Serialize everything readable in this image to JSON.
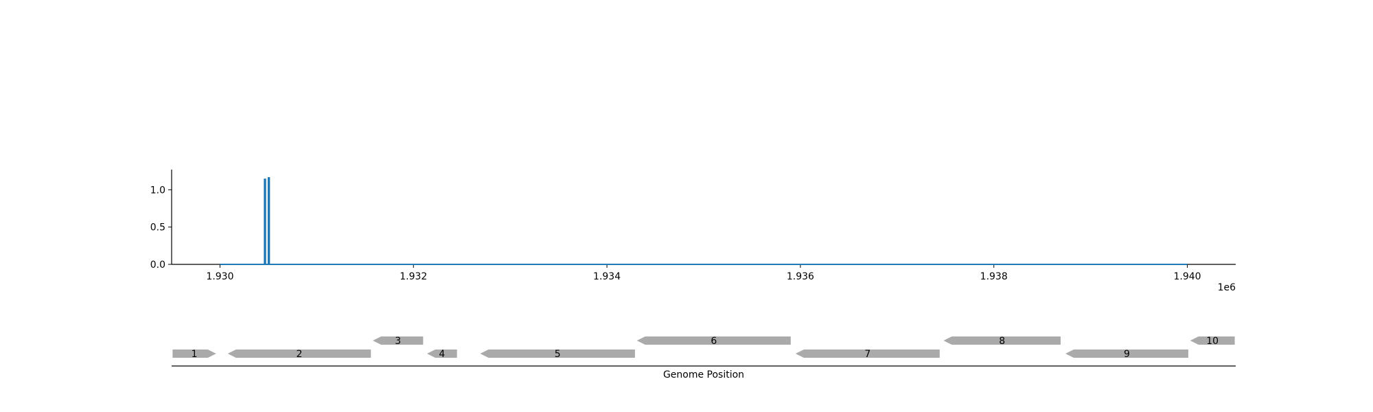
{
  "chart_data": [
    {
      "type": "line",
      "title": "",
      "xlabel": "",
      "ylabel": "",
      "x_offset_label": "1e6",
      "xlim": [
        1929500,
        1940500
      ],
      "ylim": [
        0,
        1.27
      ],
      "x_ticks": [
        1930000,
        1932000,
        1934000,
        1936000,
        1938000,
        1940000
      ],
      "x_tick_labels": [
        "1.930",
        "1.932",
        "1.934",
        "1.936",
        "1.938",
        "1.940"
      ],
      "y_ticks": [
        0,
        0.5,
        1.0
      ],
      "y_tick_labels": [
        "0.0",
        "0.5",
        "1.0"
      ],
      "grid": false,
      "series": [
        {
          "color": "#1f77b4",
          "x": [
            1930000,
            1930460,
            1930460,
            1930470,
            1930470,
            1930500,
            1930500,
            1930510,
            1930510,
            1940000
          ],
          "y": [
            0,
            0,
            1.14,
            1.14,
            0,
            0,
            1.16,
            1.16,
            0,
            0
          ]
        }
      ]
    },
    {
      "type": "gene_track",
      "xlabel": "Genome Position",
      "xlim": [
        1929500,
        1940500
      ],
      "feature_color": "#aaaaaa",
      "features": [
        {
          "label": "1",
          "start": 1929510,
          "end": 1929960,
          "strand": 1,
          "row": 0
        },
        {
          "label": "2",
          "start": 1930080,
          "end": 1931560,
          "strand": -1,
          "row": 0
        },
        {
          "label": "3",
          "start": 1931580,
          "end": 1932100,
          "strand": -1,
          "row": 1
        },
        {
          "label": "4",
          "start": 1932140,
          "end": 1932450,
          "strand": -1,
          "row": 0
        },
        {
          "label": "5",
          "start": 1932690,
          "end": 1934290,
          "strand": -1,
          "row": 0
        },
        {
          "label": "6",
          "start": 1934310,
          "end": 1935900,
          "strand": -1,
          "row": 1
        },
        {
          "label": "7",
          "start": 1935950,
          "end": 1937440,
          "strand": -1,
          "row": 0
        },
        {
          "label": "8",
          "start": 1937480,
          "end": 1938690,
          "strand": -1,
          "row": 1
        },
        {
          "label": "9",
          "start": 1938740,
          "end": 1940010,
          "strand": -1,
          "row": 0
        },
        {
          "label": "10",
          "start": 1940030,
          "end": 1940490,
          "strand": -1,
          "row": 1
        }
      ]
    }
  ]
}
